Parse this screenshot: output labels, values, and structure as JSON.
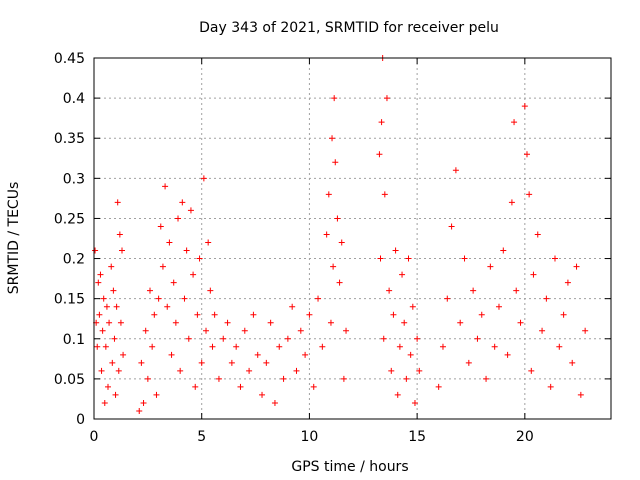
{
  "chart_data": {
    "type": "scatter",
    "title": "Day 343 of 2021, SRMTID for receiver pelu",
    "xlabel": "GPS time / hours",
    "ylabel": "SRMTID / TECUs",
    "xlim": [
      0,
      24
    ],
    "ylim": [
      0,
      0.45
    ],
    "xticks": [
      0,
      5,
      10,
      15,
      20
    ],
    "xtick_labels": [
      "0",
      "5",
      "10",
      "15",
      "20"
    ],
    "yticks": [
      0,
      0.05,
      0.1,
      0.15,
      0.2,
      0.25,
      0.3,
      0.35,
      0.4,
      0.45
    ],
    "ytick_labels": [
      "0",
      "0.05",
      "0.1",
      "0.15",
      "0.2",
      "0.25",
      "0.3",
      "0.35",
      "0.4",
      "0.45"
    ],
    "grid": true,
    "marker": "plus",
    "color": "#ff0000",
    "data_coverage_hours": [
      [
        0.0,
        1.4
      ],
      [
        2.0,
        11.8
      ],
      [
        13.2,
        15.3
      ],
      [
        15.8,
        22.8
      ]
    ],
    "series": [
      {
        "name": "SRMTID",
        "points": [
          [
            0.05,
            0.21
          ],
          [
            0.1,
            0.12
          ],
          [
            0.15,
            0.09
          ],
          [
            0.2,
            0.17
          ],
          [
            0.25,
            0.13
          ],
          [
            0.3,
            0.18
          ],
          [
            0.35,
            0.06
          ],
          [
            0.4,
            0.11
          ],
          [
            0.45,
            0.15
          ],
          [
            0.5,
            0.02
          ],
          [
            0.55,
            0.09
          ],
          [
            0.6,
            0.14
          ],
          [
            0.65,
            0.04
          ],
          [
            0.7,
            0.12
          ],
          [
            0.8,
            0.19
          ],
          [
            0.85,
            0.07
          ],
          [
            0.9,
            0.16
          ],
          [
            0.95,
            0.1
          ],
          [
            1.0,
            0.03
          ],
          [
            1.05,
            0.14
          ],
          [
            1.1,
            0.27
          ],
          [
            1.15,
            0.06
          ],
          [
            1.2,
            0.23
          ],
          [
            1.25,
            0.12
          ],
          [
            1.3,
            0.21
          ],
          [
            1.35,
            0.08
          ],
          [
            2.1,
            0.01
          ],
          [
            2.2,
            0.07
          ],
          [
            2.3,
            0.02
          ],
          [
            2.4,
            0.11
          ],
          [
            2.5,
            0.05
          ],
          [
            2.6,
            0.16
          ],
          [
            2.7,
            0.09
          ],
          [
            2.8,
            0.13
          ],
          [
            2.9,
            0.03
          ],
          [
            3.0,
            0.15
          ],
          [
            3.1,
            0.24
          ],
          [
            3.2,
            0.19
          ],
          [
            3.3,
            0.29
          ],
          [
            3.4,
            0.14
          ],
          [
            3.5,
            0.22
          ],
          [
            3.6,
            0.08
          ],
          [
            3.7,
            0.17
          ],
          [
            3.8,
            0.12
          ],
          [
            3.9,
            0.25
          ],
          [
            4.0,
            0.06
          ],
          [
            4.1,
            0.27
          ],
          [
            4.2,
            0.15
          ],
          [
            4.3,
            0.21
          ],
          [
            4.4,
            0.1
          ],
          [
            4.5,
            0.26
          ],
          [
            4.6,
            0.18
          ],
          [
            4.7,
            0.04
          ],
          [
            4.8,
            0.13
          ],
          [
            4.9,
            0.2
          ],
          [
            5.0,
            0.07
          ],
          [
            5.1,
            0.3
          ],
          [
            5.2,
            0.11
          ],
          [
            5.3,
            0.22
          ],
          [
            5.4,
            0.16
          ],
          [
            5.5,
            0.09
          ],
          [
            5.6,
            0.13
          ],
          [
            5.8,
            0.05
          ],
          [
            6.0,
            0.1
          ],
          [
            6.2,
            0.12
          ],
          [
            6.4,
            0.07
          ],
          [
            6.6,
            0.09
          ],
          [
            6.8,
            0.04
          ],
          [
            7.0,
            0.11
          ],
          [
            7.2,
            0.06
          ],
          [
            7.4,
            0.13
          ],
          [
            7.6,
            0.08
          ],
          [
            7.8,
            0.03
          ],
          [
            8.0,
            0.07
          ],
          [
            8.2,
            0.12
          ],
          [
            8.4,
            0.02
          ],
          [
            8.6,
            0.09
          ],
          [
            8.8,
            0.05
          ],
          [
            9.0,
            0.1
          ],
          [
            9.2,
            0.14
          ],
          [
            9.4,
            0.06
          ],
          [
            9.6,
            0.11
          ],
          [
            9.8,
            0.08
          ],
          [
            10.0,
            0.13
          ],
          [
            10.2,
            0.04
          ],
          [
            10.4,
            0.15
          ],
          [
            10.6,
            0.09
          ],
          [
            10.8,
            0.23
          ],
          [
            10.9,
            0.28
          ],
          [
            11.0,
            0.12
          ],
          [
            11.05,
            0.35
          ],
          [
            11.1,
            0.19
          ],
          [
            11.15,
            0.4
          ],
          [
            11.2,
            0.32
          ],
          [
            11.3,
            0.25
          ],
          [
            11.4,
            0.17
          ],
          [
            11.5,
            0.22
          ],
          [
            11.6,
            0.05
          ],
          [
            11.7,
            0.11
          ],
          [
            13.25,
            0.33
          ],
          [
            13.3,
            0.2
          ],
          [
            13.35,
            0.37
          ],
          [
            13.4,
            0.45
          ],
          [
            13.45,
            0.1
          ],
          [
            13.5,
            0.28
          ],
          [
            13.6,
            0.4
          ],
          [
            13.7,
            0.16
          ],
          [
            13.8,
            0.06
          ],
          [
            13.9,
            0.13
          ],
          [
            14.0,
            0.21
          ],
          [
            14.1,
            0.03
          ],
          [
            14.2,
            0.09
          ],
          [
            14.3,
            0.18
          ],
          [
            14.4,
            0.12
          ],
          [
            14.5,
            0.05
          ],
          [
            14.6,
            0.2
          ],
          [
            14.7,
            0.08
          ],
          [
            14.8,
            0.14
          ],
          [
            14.9,
            0.02
          ],
          [
            15.0,
            0.1
          ],
          [
            15.1,
            0.06
          ],
          [
            16.0,
            0.04
          ],
          [
            16.2,
            0.09
          ],
          [
            16.4,
            0.15
          ],
          [
            16.6,
            0.24
          ],
          [
            16.8,
            0.31
          ],
          [
            17.0,
            0.12
          ],
          [
            17.2,
            0.2
          ],
          [
            17.4,
            0.07
          ],
          [
            17.6,
            0.16
          ],
          [
            17.8,
            0.1
          ],
          [
            18.0,
            0.13
          ],
          [
            18.2,
            0.05
          ],
          [
            18.4,
            0.19
          ],
          [
            18.6,
            0.09
          ],
          [
            18.8,
            0.14
          ],
          [
            19.0,
            0.21
          ],
          [
            19.2,
            0.08
          ],
          [
            19.4,
            0.27
          ],
          [
            19.5,
            0.37
          ],
          [
            19.6,
            0.16
          ],
          [
            19.8,
            0.12
          ],
          [
            20.0,
            0.39
          ],
          [
            20.1,
            0.33
          ],
          [
            20.2,
            0.28
          ],
          [
            20.3,
            0.06
          ],
          [
            20.4,
            0.18
          ],
          [
            20.6,
            0.23
          ],
          [
            20.8,
            0.11
          ],
          [
            21.0,
            0.15
          ],
          [
            21.2,
            0.04
          ],
          [
            21.4,
            0.2
          ],
          [
            21.6,
            0.09
          ],
          [
            21.8,
            0.13
          ],
          [
            22.0,
            0.17
          ],
          [
            22.2,
            0.07
          ],
          [
            22.4,
            0.19
          ],
          [
            22.6,
            0.03
          ],
          [
            22.8,
            0.11
          ]
        ]
      }
    ]
  }
}
